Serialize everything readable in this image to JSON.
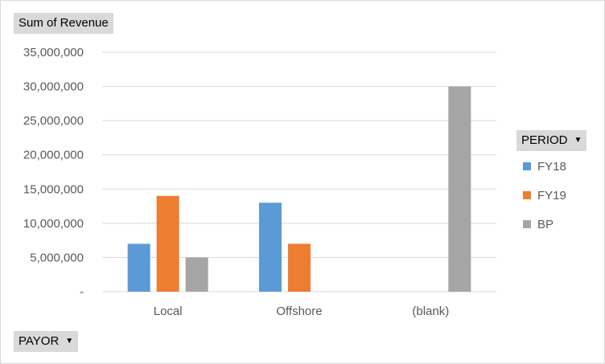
{
  "value_field_label": "Sum of Revenue",
  "legend_field": {
    "label": "PERIOD",
    "icon": "dropdown-arrow-icon"
  },
  "axis_field": {
    "label": "PAYOR",
    "icon": "dropdown-arrow-icon"
  },
  "chart_data": {
    "type": "bar",
    "categories": [
      "Local",
      "Offshore",
      "(blank)"
    ],
    "series": [
      {
        "name": "FY18",
        "color": "#5b9bd5",
        "values": [
          7000000,
          13000000,
          null
        ]
      },
      {
        "name": "FY19",
        "color": "#ed7d31",
        "values": [
          14000000,
          7000000,
          null
        ]
      },
      {
        "name": "BP",
        "color": "#a5a5a5",
        "values": [
          5000000,
          null,
          30000000
        ]
      }
    ],
    "y_ticks": [
      "-",
      "5,000,000",
      "10,000,000",
      "15,000,000",
      "20,000,000",
      "25,000,000",
      "30,000,000",
      "35,000,000"
    ],
    "ylim": [
      0,
      35000000
    ],
    "grid": true,
    "legend_position": "right"
  }
}
